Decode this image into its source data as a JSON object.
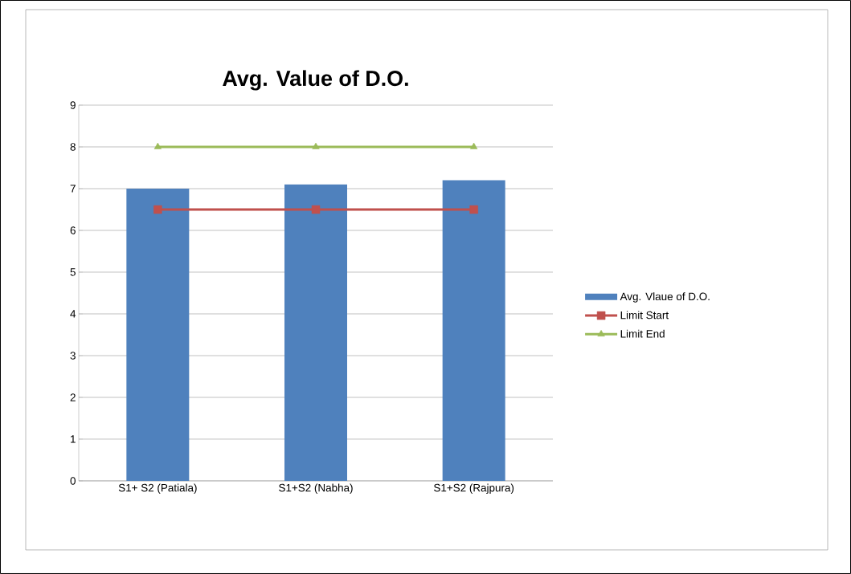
{
  "chart_data": {
    "type": "bar",
    "title": "Avg. Value of D.O.",
    "categories": [
      "S1+ S2 (Patiala)",
      "S1+S2 (Nabha)",
      "S1+S2 (Rajpura)"
    ],
    "series": [
      {
        "name": "Avg. Vlaue of  D.O.",
        "color": "#4f81bd",
        "values": [
          7.0,
          7.1,
          7.2
        ]
      },
      {
        "name": "Limit Start",
        "type": "line",
        "color": "#c0504d",
        "marker": "square",
        "values": [
          6.5,
          6.5,
          6.5
        ]
      },
      {
        "name": "Limit End",
        "type": "line",
        "color": "#9bbb59",
        "marker": "triangle",
        "values": [
          8,
          8,
          8
        ]
      }
    ],
    "ylim": [
      0,
      9
    ],
    "yticks": [
      0,
      1,
      2,
      3,
      4,
      5,
      6,
      7,
      8,
      9
    ],
    "grid": "y",
    "legend": "right"
  }
}
